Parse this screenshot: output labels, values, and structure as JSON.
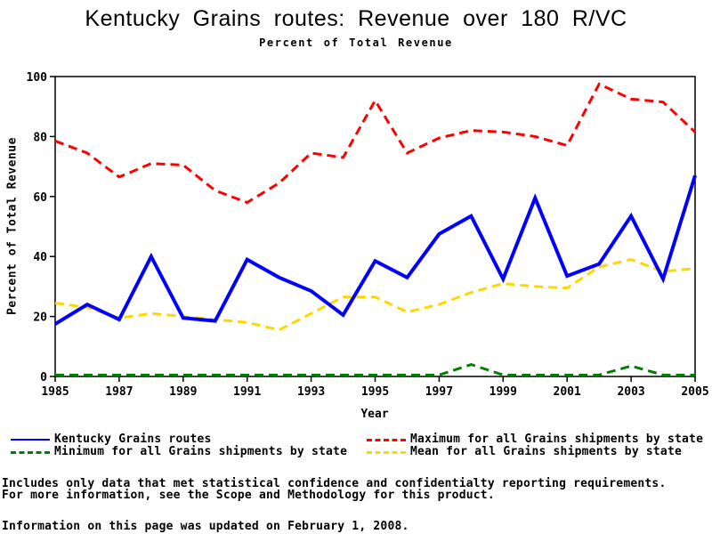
{
  "header": {
    "title": "Kentucky Grains routes: Revenue over 180 R/VC",
    "subtitle": "Percent of Total Revenue"
  },
  "chart_data": {
    "type": "line",
    "x": [
      1985,
      1986,
      1987,
      1988,
      1989,
      1990,
      1991,
      1992,
      1993,
      1994,
      1995,
      1996,
      1997,
      1998,
      1999,
      2000,
      2001,
      2002,
      2003,
      2004,
      2005
    ],
    "xlabel": "Year",
    "ylabel": "Percent of Total Revenue",
    "xlim": [
      1985,
      2005
    ],
    "ylim": [
      0,
      100
    ],
    "xticks": [
      1985,
      1987,
      1989,
      1991,
      1993,
      1995,
      1997,
      1999,
      2001,
      2003,
      2005
    ],
    "yticks": [
      0,
      20,
      40,
      60,
      80,
      100
    ],
    "grid": false,
    "legend_position": "bottom",
    "series": [
      {
        "name": "Maximum for all Grains shipments by state",
        "color": "#FF0000",
        "dash": true,
        "width": 3,
        "values": [
          78.5,
          74.5,
          66.5,
          71,
          70.5,
          62,
          58,
          64.5,
          74.5,
          73,
          92,
          74.5,
          79.5,
          82,
          81.5,
          80,
          77,
          97.5,
          92.5,
          91.5,
          81.5
        ]
      },
      {
        "name": "Minimum for all Grains shipments by state",
        "color": "#008000",
        "dash": true,
        "width": 3,
        "values": [
          0.5,
          0.5,
          0.5,
          0.5,
          0.5,
          0.5,
          0.5,
          0.5,
          0.5,
          0.5,
          0.5,
          0.5,
          0.5,
          4,
          0.5,
          0.5,
          0.5,
          0.5,
          3.5,
          0.5,
          0.5
        ]
      },
      {
        "name": "Mean for all Grains shipments by state",
        "color": "#FFD700",
        "dash": true,
        "width": 3,
        "values": [
          24.5,
          23,
          19.5,
          21,
          20,
          19,
          18,
          15.5,
          21,
          26.5,
          26.5,
          21.5,
          24,
          28,
          31,
          30,
          29.5,
          36.5,
          39,
          35,
          36
        ]
      },
      {
        "name": "Kentucky Grains routes",
        "color": "#0000FF",
        "dash": false,
        "width": 4,
        "values": [
          17.5,
          24,
          19,
          40,
          19.5,
          18.5,
          39,
          33,
          28.5,
          20.5,
          38.5,
          33,
          47.5,
          53.5,
          32.5,
          59.5,
          33.5,
          37.5,
          53.5,
          32.5,
          67
        ]
      }
    ]
  },
  "legend": {
    "items": [
      {
        "label": "Kentucky Grains routes",
        "series": 3
      },
      {
        "label": "Maximum for all Grains shipments by state",
        "series": 0
      },
      {
        "label": "Minimum for all Grains shipments by state",
        "series": 1
      },
      {
        "label": "Mean for all Grains shipments by state",
        "series": 2
      }
    ]
  },
  "footnotes": {
    "line1": "Includes only data that met statistical confidence and confidentialty reporting requirements.",
    "line2": "For more information, see the Scope and Methodology for this product.",
    "updated": "Information on this page was updated on February 1, 2008."
  }
}
